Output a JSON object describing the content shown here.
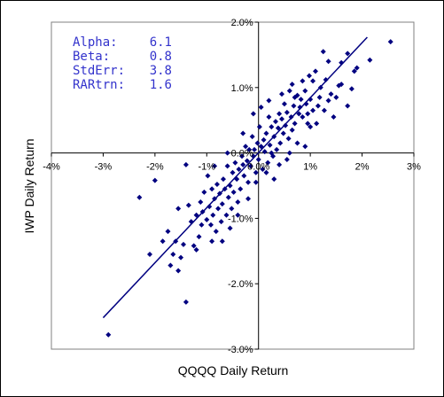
{
  "colors": {
    "marker": "#000080",
    "fit_line": "#000080",
    "stats_text": "#3333cc",
    "axis": "#000000",
    "plot_border": "#808080",
    "background": "#ffffff"
  },
  "chart_data": {
    "type": "scatter",
    "title": "",
    "xlabel": "QQQQ Daily Return",
    "ylabel": "IWP Daily Return",
    "xlim": [
      -4,
      3
    ],
    "ylim": [
      -3,
      2
    ],
    "x_ticks": [
      -4,
      -3,
      -2,
      -1,
      0,
      1,
      2,
      3
    ],
    "y_ticks": [
      -3,
      -2,
      -1,
      0,
      1,
      2
    ],
    "x_tick_labels": [
      "-4%",
      "-3%",
      "-2%",
      "-1%",
      "0.0%",
      "1%",
      "2%",
      "3%"
    ],
    "y_tick_labels": [
      "-3.0%",
      "-2.0%",
      "-1.0%",
      "0.0%",
      "1.0%",
      "2.0%"
    ],
    "grid": false,
    "legend": "none",
    "marker_shape": "diamond",
    "stats": [
      {
        "label": "Alpha:",
        "value": "6.1"
      },
      {
        "label": "Beta:",
        "value": "0.8"
      },
      {
        "label": "StdErr:",
        "value": "3.8"
      },
      {
        "label": "RARtrn:",
        "value": "1.6"
      }
    ],
    "trendline": {
      "x": [
        -3.0,
        2.1
      ],
      "y": [
        -2.52,
        1.77
      ]
    },
    "points": [
      [
        2.55,
        1.7
      ],
      [
        2.15,
        1.42
      ],
      [
        1.85,
        1.25
      ],
      [
        1.8,
        0.98
      ],
      [
        1.72,
        1.52
      ],
      [
        1.6,
        1.38
      ],
      [
        1.55,
        1.03
      ],
      [
        1.5,
        0.85
      ],
      [
        1.72,
        0.72
      ],
      [
        1.35,
        1.4
      ],
      [
        1.3,
        1.12
      ],
      [
        1.27,
        0.65
      ],
      [
        1.25,
        1.55
      ],
      [
        1.2,
        1.0
      ],
      [
        1.18,
        0.85
      ],
      [
        1.15,
        0.72
      ],
      [
        1.1,
        1.25
      ],
      [
        1.05,
        1.1
      ],
      [
        1.0,
        0.82
      ],
      [
        0.95,
        0.6
      ],
      [
        0.98,
        1.18
      ],
      [
        0.92,
        0.75
      ],
      [
        0.9,
        0.95
      ],
      [
        0.85,
        0.55
      ],
      [
        0.82,
        0.82
      ],
      [
        0.8,
        0.7
      ],
      [
        0.78,
        0.6
      ],
      [
        0.75,
        0.88
      ],
      [
        0.7,
        0.45
      ],
      [
        0.68,
        0.72
      ],
      [
        0.65,
        0.35
      ],
      [
        0.63,
        0.55
      ],
      [
        0.6,
        0.95
      ],
      [
        0.58,
        0.22
      ],
      [
        0.55,
        0.62
      ],
      [
        0.52,
        0.42
      ],
      [
        0.5,
        0.75
      ],
      [
        0.48,
        0.3
      ],
      [
        0.45,
        0.52
      ],
      [
        0.42,
        0.15
      ],
      [
        0.4,
        0.6
      ],
      [
        0.38,
        0.38
      ],
      [
        0.35,
        0.05
      ],
      [
        0.33,
        0.48
      ],
      [
        0.3,
        0.25
      ],
      [
        0.28,
        -0.05
      ],
      [
        0.25,
        0.4
      ],
      [
        0.22,
        0.12
      ],
      [
        0.2,
        0.55
      ],
      [
        0.18,
        -0.15
      ],
      [
        0.15,
        0.3
      ],
      [
        0.12,
        0.02
      ],
      [
        0.1,
        0.2
      ],
      [
        0.08,
        -0.25
      ],
      [
        0.05,
        0.1
      ],
      [
        0.02,
        0.4
      ],
      [
        0.0,
        -0.1
      ],
      [
        -0.02,
        0.15
      ],
      [
        -0.05,
        -0.3
      ],
      [
        -0.08,
        0.05
      ],
      [
        -0.1,
        -0.05
      ],
      [
        -0.12,
        0.25
      ],
      [
        -0.15,
        -0.2
      ],
      [
        -0.18,
        0.05
      ],
      [
        -0.2,
        -0.45
      ],
      [
        -0.22,
        -0.12
      ],
      [
        -0.25,
        0.1
      ],
      [
        -0.28,
        -0.35
      ],
      [
        -0.3,
        -0.18
      ],
      [
        -0.32,
        -0.05
      ],
      [
        -0.35,
        -0.55
      ],
      [
        -0.38,
        -0.25
      ],
      [
        -0.4,
        -0.75
      ],
      [
        -0.42,
        -0.4
      ],
      [
        -0.45,
        -0.15
      ],
      [
        -0.48,
        -0.6
      ],
      [
        -0.5,
        -0.3
      ],
      [
        -0.52,
        -0.85
      ],
      [
        -0.55,
        -0.5
      ],
      [
        -0.58,
        -0.68
      ],
      [
        -0.6,
        -0.2
      ],
      [
        -0.62,
        -0.95
      ],
      [
        -0.65,
        -0.55
      ],
      [
        -0.68,
        -0.4
      ],
      [
        -0.7,
        -0.78
      ],
      [
        -0.72,
        -1.05
      ],
      [
        -0.75,
        -0.62
      ],
      [
        -0.78,
        -0.85
      ],
      [
        -0.8,
        -0.48
      ],
      [
        -0.82,
        -1.2
      ],
      [
        -0.85,
        -0.7
      ],
      [
        -0.88,
        -0.95
      ],
      [
        -0.9,
        -0.55
      ],
      [
        -0.92,
        -1.1
      ],
      [
        -0.95,
        -0.82
      ],
      [
        -0.98,
        -0.35
      ],
      [
        -1.0,
        -1.02
      ],
      [
        -1.05,
        -0.6
      ],
      [
        -1.08,
        -0.9
      ],
      [
        -1.1,
        -1.1
      ],
      [
        -1.12,
        -0.75
      ],
      [
        -1.15,
        -1.28
      ],
      [
        -1.2,
        -0.95
      ],
      [
        -1.25,
        -1.42
      ],
      [
        -1.3,
        -1.05
      ],
      [
        -1.35,
        -0.8
      ],
      [
        -1.4,
        -0.18
      ],
      [
        -1.45,
        -1.4
      ],
      [
        -1.5,
        -1.6
      ],
      [
        -1.55,
        -0.85
      ],
      [
        -1.6,
        -1.35
      ],
      [
        -1.65,
        -1.55
      ],
      [
        -1.7,
        -1.72
      ],
      [
        -1.75,
        -1.2
      ],
      [
        -1.85,
        -1.35
      ],
      [
        -2.0,
        -0.42
      ],
      [
        -1.4,
        -2.28
      ],
      [
        -2.3,
        -0.68
      ],
      [
        -2.1,
        -1.55
      ],
      [
        -1.55,
        -1.8
      ],
      [
        -2.9,
        -2.78
      ],
      [
        0.9,
        0.1
      ],
      [
        1.0,
        0.4
      ],
      [
        0.75,
        0.15
      ],
      [
        0.6,
        0.0
      ],
      [
        0.4,
        -0.18
      ],
      [
        1.4,
        0.9
      ],
      [
        1.45,
        0.55
      ],
      [
        1.12,
        0.45
      ],
      [
        1.35,
        0.8
      ],
      [
        0.85,
        1.1
      ],
      [
        0.45,
        0.9
      ],
      [
        0.2,
        0.8
      ],
      [
        -0.1,
        0.6
      ],
      [
        -0.3,
        0.3
      ],
      [
        -0.6,
        0.0
      ],
      [
        -0.85,
        -0.2
      ],
      [
        0.3,
        -0.4
      ],
      [
        0.55,
        -0.1
      ],
      [
        0.15,
        -0.3
      ],
      [
        -0.4,
        -0.95
      ],
      [
        -0.2,
        -0.7
      ],
      [
        -0.7,
        -1.35
      ],
      [
        -0.55,
        -1.15
      ],
      [
        0.05,
        0.7
      ],
      [
        0.95,
        0.45
      ],
      [
        1.6,
        1.05
      ],
      [
        1.9,
        1.3
      ],
      [
        0.7,
        0.85
      ],
      [
        0.25,
        0.0
      ],
      [
        -0.05,
        -0.45
      ],
      [
        -0.9,
        -1.35
      ],
      [
        -1.2,
        -1.48
      ],
      [
        0.65,
        1.05
      ],
      [
        1.05,
        0.65
      ]
    ]
  }
}
